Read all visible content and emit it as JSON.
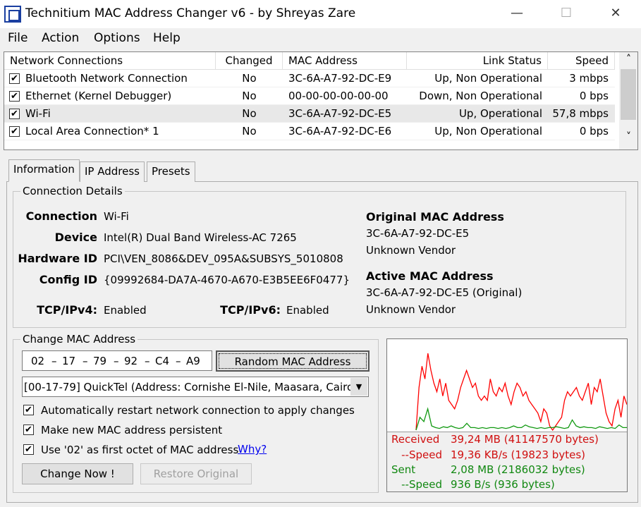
{
  "window": {
    "title": "Technitium MAC Address Changer v6 - by Shreyas Zare",
    "minimize": "—",
    "maximize": "☐",
    "close": "✕"
  },
  "menu": [
    {
      "label": "File"
    },
    {
      "label": "Action"
    },
    {
      "label": "Options"
    },
    {
      "label": "Help"
    }
  ],
  "list": {
    "columns": [
      "Network Connections",
      "Changed",
      "MAC Address",
      "Link Status",
      "Speed"
    ],
    "rows": [
      {
        "checked": true,
        "name": "Bluetooth Network Connection",
        "changed": "No",
        "mac": "3C-6A-A7-92-DC-E9",
        "status": "Up, Non Operational",
        "speed": "3 mbps"
      },
      {
        "checked": true,
        "name": "Ethernet (Kernel Debugger)",
        "changed": "No",
        "mac": "00-00-00-00-00-00",
        "status": "Down, Non Operational",
        "speed": "0 bps"
      },
      {
        "checked": true,
        "name": "Wi-Fi",
        "changed": "No",
        "mac": "3C-6A-A7-92-DC-E5",
        "status": "Up, Operational",
        "speed": "57,8 mbps",
        "selected": true
      },
      {
        "checked": true,
        "name": "Local Area Connection* 1",
        "changed": "No",
        "mac": "3C-6A-A7-92-DC-E6",
        "status": "Up, Non Operational",
        "speed": "0 bps"
      }
    ],
    "scroll_up": "˄",
    "scroll_down": "˅"
  },
  "tabs": [
    {
      "label": "Information",
      "active": true
    },
    {
      "label": "IP Address"
    },
    {
      "label": "Presets"
    }
  ],
  "details": {
    "group_label": "Connection Details",
    "connection_label": "Connection",
    "connection": "Wi-Fi",
    "device_label": "Device",
    "device": "Intel(R) Dual Band Wireless-AC 7265",
    "hwid_label": "Hardware ID",
    "hwid": "PCI\\VEN_8086&DEV_095A&SUBSYS_5010808",
    "configid_label": "Config ID",
    "configid": "{09992684-DA7A-4670-A670-E3B5EE6F0477}",
    "ipv4_label": "TCP/IPv4:",
    "ipv4": "Enabled",
    "ipv6_label": "TCP/IPv6:",
    "ipv6": "Enabled",
    "orig_label": "Original MAC Address",
    "orig_mac": "3C-6A-A7-92-DC-E5",
    "orig_vendor": "Unknown Vendor",
    "active_label": "Active MAC Address",
    "active_mac": "3C-6A-A7-92-DC-E5 (Original)",
    "active_vendor": "Unknown Vendor"
  },
  "change": {
    "group_label": "Change MAC Address",
    "octets": [
      "02",
      "17",
      "79",
      "92",
      "C4",
      "A9"
    ],
    "sep": "–",
    "random_button": "Random MAC Address",
    "vendor_select": "[00-17-79] QuickTel  (Address: Cornishe El-Nile, Maasara, Cairo",
    "options": [
      {
        "label": "Automatically restart network connection to apply changes",
        "checked": true
      },
      {
        "label": "Make new MAC address persistent",
        "checked": true
      },
      {
        "label": "Use '02' as first octet of MAC address",
        "checked": true
      }
    ],
    "why_link": "Why?",
    "change_button": "Change Now !",
    "restore_button": "Restore Original"
  },
  "traffic": {
    "colors": {
      "received": "#ff0000",
      "sent": "#119911"
    },
    "received_series": [
      0,
      50,
      75,
      60,
      90,
      70,
      55,
      45,
      60,
      40,
      55,
      35,
      30,
      25,
      35,
      50,
      60,
      70,
      60,
      50,
      55,
      40,
      35,
      40,
      35,
      60,
      45,
      40,
      50,
      45,
      55,
      40,
      30,
      45,
      55,
      50,
      40,
      45,
      35,
      30,
      25,
      20,
      10,
      25,
      20,
      5,
      0,
      5,
      10,
      15,
      35,
      45,
      40,
      45,
      50,
      40,
      35,
      45,
      55,
      30,
      50,
      45,
      60,
      40,
      20,
      10,
      5,
      25,
      35,
      15,
      40,
      30
    ],
    "sent_series": [
      0,
      15,
      10,
      25,
      5,
      3,
      2,
      4,
      3,
      5,
      3,
      2,
      3,
      8,
      3,
      3,
      2,
      3,
      2,
      3,
      3,
      2,
      3,
      2,
      3,
      5,
      3,
      3,
      6,
      4,
      3,
      2,
      3,
      2,
      3,
      3,
      4,
      3,
      2,
      3,
      12,
      5,
      3,
      4,
      3,
      3,
      2,
      4,
      3,
      2,
      3,
      2,
      6,
      3,
      3
    ],
    "received_label": "Received",
    "received": "39,24 MB (41147570 bytes)",
    "rspeed_label": "--Speed",
    "rspeed": "19,36 KB/s (19823 bytes)",
    "sent_label": "Sent",
    "sent": "2,08 MB (2186032 bytes)",
    "sspeed_label": "--Speed",
    "sspeed": "936 B/s (936 bytes)"
  }
}
